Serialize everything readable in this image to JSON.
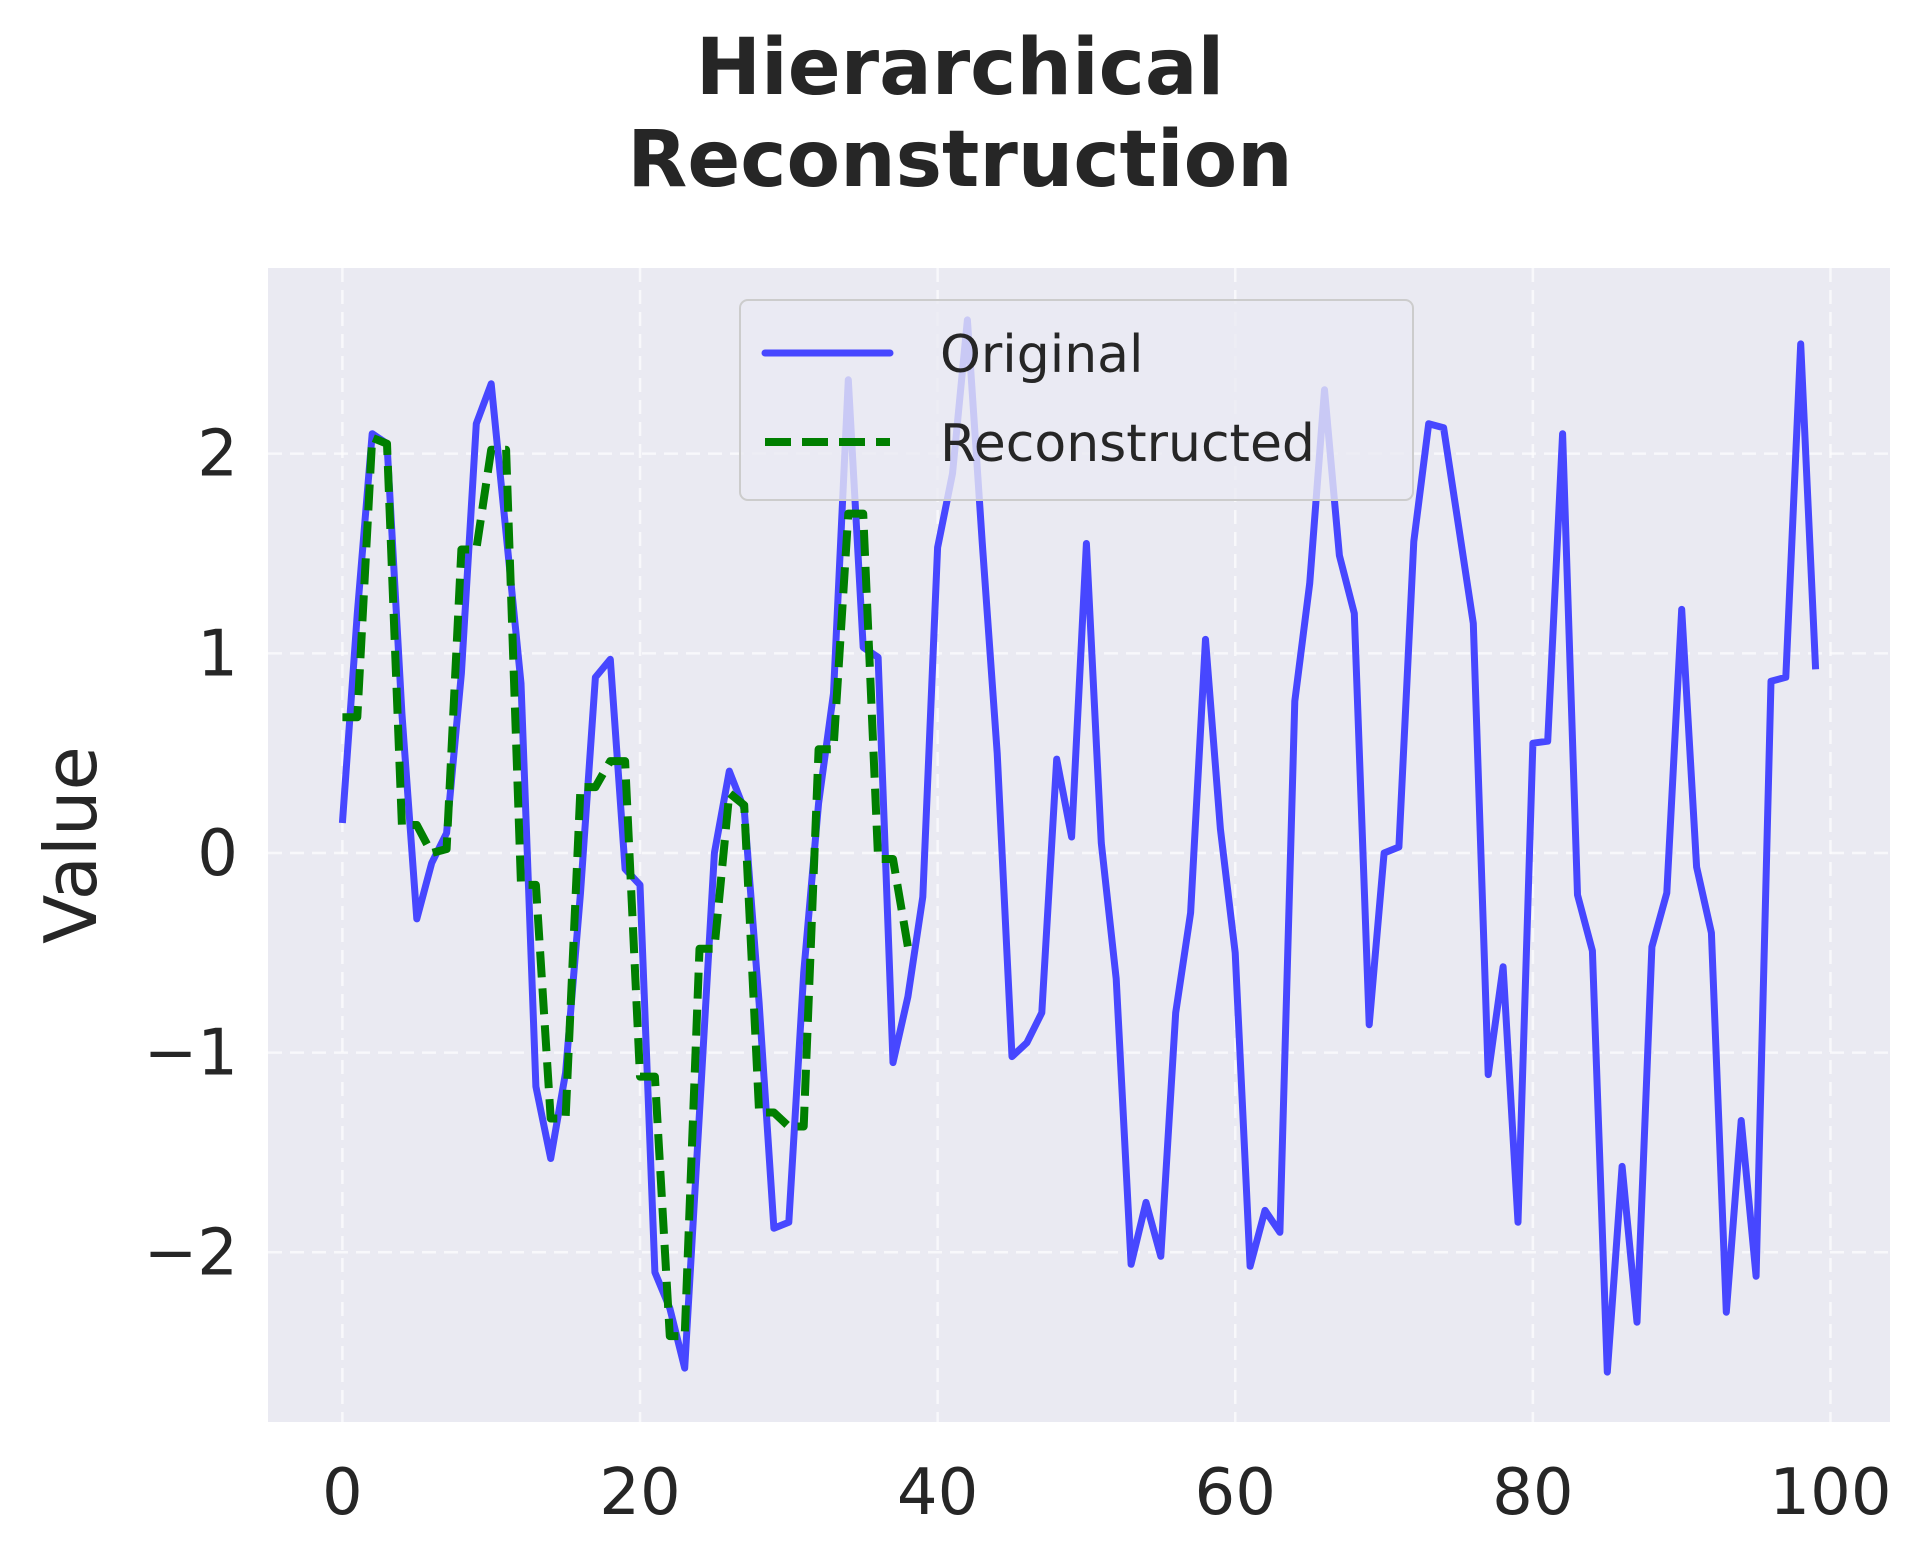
{
  "title_line1": "Hierarchical",
  "title_line2": "Reconstruction",
  "colors": {
    "original": "#4747ff",
    "reconstructed": "#007f00",
    "plot_bg": "#eaeaf2",
    "grid": "#ffffff"
  },
  "chart_data": {
    "type": "line",
    "title": "Hierarchical Reconstruction",
    "xlabel": "",
    "ylabel": "Value",
    "xlim": [
      -5,
      104
    ],
    "ylim": [
      -2.85,
      2.93
    ],
    "xticks": [
      0,
      20,
      40,
      60,
      80,
      100
    ],
    "yticks": [
      -2,
      -1,
      0,
      1,
      2
    ],
    "xtick_labels": [
      "0",
      "20",
      "40",
      "60",
      "80",
      "100"
    ],
    "ytick_labels": [
      "−2",
      "−1",
      "0",
      "1",
      "2"
    ],
    "grid": true,
    "legend_position": "upper center",
    "series": [
      {
        "name": "Original",
        "style": "solid",
        "color": "#4747ff",
        "x": [
          0,
          1,
          2,
          3,
          4,
          5,
          6,
          7,
          8,
          9,
          10,
          11,
          12,
          13,
          14,
          15,
          16,
          17,
          18,
          19,
          20,
          21,
          22,
          23,
          24,
          25,
          26,
          27,
          28,
          29,
          30,
          31,
          32,
          33,
          34,
          35,
          36,
          37,
          38,
          39,
          40,
          41,
          42,
          43,
          44,
          45,
          46,
          47,
          48,
          49,
          50,
          51,
          52,
          53,
          54,
          55,
          56,
          57,
          58,
          59,
          60,
          61,
          62,
          63,
          64,
          65,
          66,
          67,
          68,
          69,
          70,
          71,
          72,
          73,
          74,
          75,
          76,
          77,
          78,
          79,
          80,
          81,
          82,
          83,
          84,
          85,
          86,
          87,
          88,
          89,
          90,
          91,
          92,
          93,
          94,
          95,
          96,
          97,
          98,
          99
        ],
        "values": [
          0.15,
          1.2,
          2.1,
          2.05,
          0.7,
          -0.33,
          -0.05,
          0.1,
          0.9,
          2.15,
          2.35,
          1.6,
          0.85,
          -1.17,
          -1.53,
          -1.1,
          -0.2,
          0.88,
          0.97,
          -0.08,
          -0.16,
          -2.1,
          -2.28,
          -2.58,
          -1.3,
          0.0,
          0.41,
          0.22,
          -0.75,
          -1.88,
          -1.85,
          -0.6,
          0.25,
          0.8,
          2.37,
          1.03,
          0.98,
          -1.05,
          -0.72,
          -0.22,
          1.53,
          1.9,
          2.67,
          1.55,
          0.5,
          -1.02,
          -0.95,
          -0.8,
          0.47,
          0.08,
          1.55,
          0.05,
          -0.63,
          -2.06,
          -1.75,
          -2.02,
          -0.8,
          -0.3,
          1.07,
          0.12,
          -0.5,
          -2.07,
          -1.79,
          -1.9,
          0.76,
          1.35,
          2.32,
          1.49,
          1.2,
          -0.86,
          0.0,
          0.03,
          1.56,
          2.15,
          2.13,
          1.64,
          1.15,
          -1.11,
          -0.57,
          -1.85,
          0.55,
          0.56,
          2.1,
          -0.21,
          -0.49,
          -2.6,
          -1.57,
          -2.35,
          -0.47,
          -0.2,
          1.22,
          -0.07,
          -0.4,
          -2.3,
          -1.34,
          -2.12,
          0.86,
          0.88,
          2.55,
          0.92
        ]
      },
      {
        "name": "Reconstructed",
        "style": "dashed",
        "color": "#007f00",
        "x": [
          0,
          1,
          2,
          3,
          4,
          5,
          6,
          7,
          8,
          9,
          10,
          11,
          12,
          13,
          14,
          15,
          16,
          17,
          18,
          19,
          20,
          21,
          22,
          23,
          24,
          25,
          26,
          27,
          28,
          29,
          30,
          31,
          32,
          33,
          34,
          35,
          36,
          37,
          38
        ],
        "values": [
          0.68,
          0.68,
          2.08,
          2.05,
          0.14,
          0.14,
          0.0,
          0.02,
          1.52,
          1.52,
          2.02,
          2.02,
          -0.16,
          -0.16,
          -1.33,
          -1.33,
          0.33,
          0.33,
          0.46,
          0.46,
          -1.12,
          -1.12,
          -2.42,
          -2.42,
          -0.48,
          -0.48,
          0.3,
          0.24,
          -1.3,
          -1.3,
          -1.37,
          -1.37,
          0.52,
          0.52,
          1.7,
          1.7,
          -0.03,
          -0.03,
          -0.47
        ]
      }
    ]
  }
}
